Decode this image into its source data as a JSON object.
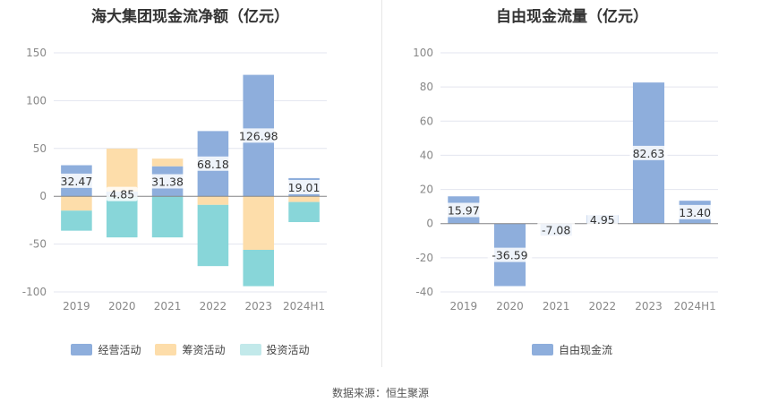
{
  "source_text": "数据来源：恒生聚源",
  "colors": {
    "operating": "#8eaedc",
    "financing": "#fdddaa",
    "investing": "#88d6d9",
    "fcf": "#8eaedc",
    "grid": "#e3e5ef",
    "axis_text": "#888888"
  },
  "chart_data": [
    {
      "type": "bar",
      "stacked": true,
      "title": "海大集团现金流净额（亿元）",
      "categories": [
        "2019",
        "2020",
        "2021",
        "2022",
        "2023",
        "2024H1"
      ],
      "ylim": [
        -100,
        150
      ],
      "yticks": [
        150,
        100,
        50,
        0,
        -50,
        -100
      ],
      "grid": true,
      "legend_position": "bottom",
      "series": [
        {
          "name": "经营活动",
          "values": [
            32.47,
            4.85,
            31.38,
            68.18,
            126.98,
            19.01
          ]
        },
        {
          "name": "筹资活动",
          "values": [
            -15,
            45,
            8,
            -9,
            -56,
            -6
          ]
        },
        {
          "name": "投资活动",
          "values": [
            -21,
            -43,
            -43,
            -64,
            -38,
            -21
          ]
        }
      ],
      "data_labels": [
        "32.47",
        "4.85",
        "31.38",
        "68.18",
        "126.98",
        "19.01"
      ]
    },
    {
      "type": "bar",
      "title": "自由现金流量（亿元）",
      "categories": [
        "2019",
        "2020",
        "2021",
        "2022",
        "2023",
        "2024H1"
      ],
      "ylim": [
        -40,
        100
      ],
      "yticks": [
        100,
        80,
        60,
        40,
        20,
        0,
        -20,
        -40
      ],
      "grid": true,
      "legend_position": "bottom",
      "series": [
        {
          "name": "自由现金流",
          "values": [
            15.97,
            -36.59,
            -7.08,
            4.95,
            82.63,
            13.4
          ]
        }
      ],
      "data_labels": [
        "15.97",
        "-36.59",
        "-7.08",
        "4.95",
        "82.63",
        "13.40"
      ]
    }
  ]
}
